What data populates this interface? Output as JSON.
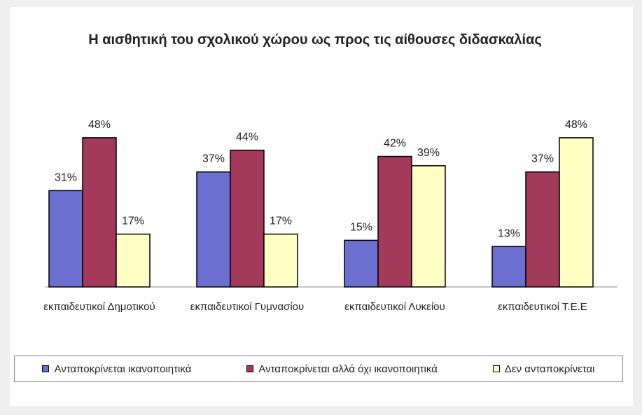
{
  "chart_data": {
    "type": "bar",
    "title": "Η αισθητική του σχολικού χώρου ως προς τις αίθουσες διδασκαλίας",
    "categories": [
      "εκπαιδευτικοί Δημοτικού",
      "εκπαιδευτικοί Γυμνασίου",
      "εκπαιδευτικοί Λυκείου",
      "εκπαιδευτικοί Τ.Ε.Ε"
    ],
    "series": [
      {
        "name": "Ανταποκρίνεται ικανοποιητικά",
        "color": "#6b6fcf",
        "values": [
          31,
          37,
          15,
          13
        ],
        "value_labels": [
          "31%",
          "37%",
          "15%",
          "13%"
        ]
      },
      {
        "name": "Ανταποκρίνεται αλλά όχι ικανοποιητικά",
        "color": "#a33a5c",
        "values": [
          48,
          44,
          42,
          37
        ],
        "value_labels": [
          "48%",
          "44%",
          "42%",
          "37%"
        ]
      },
      {
        "name": "Δεν ανταποκρίνεται",
        "color": "#ffffc4",
        "values": [
          17,
          17,
          39,
          48
        ],
        "value_labels": [
          "17%",
          "17%",
          "39%",
          "48%"
        ]
      }
    ]
  }
}
